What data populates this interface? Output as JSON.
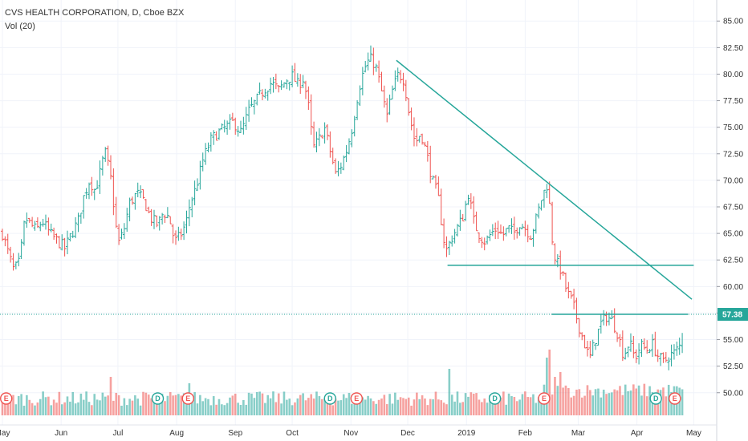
{
  "header": {
    "symbol_line": "CVS HEALTH CORPORATION, D, Cboe BZX",
    "volume_line": "Vol (20)"
  },
  "colors": {
    "up": "#26a69a",
    "down": "#ef5350",
    "trendline": "#26a69a",
    "price_tag": "#26a69a"
  },
  "chart_data": {
    "type": "candlestick",
    "title": "CVS HEALTH CORPORATION, D, Cboe BZX",
    "indicator": "Vol (20)",
    "y_axis": {
      "min": 49,
      "max": 86,
      "ticks": [
        "50.00",
        "52.50",
        "55.00",
        "57.50",
        "60.00",
        "62.50",
        "65.00",
        "67.50",
        "70.00",
        "72.50",
        "75.00",
        "77.50",
        "80.00",
        "82.50",
        "85.00"
      ]
    },
    "current_price": "57.38",
    "x_axis": {
      "labels": [
        {
          "text": "May",
          "day": 0
        },
        {
          "text": "Jun",
          "day": 31
        },
        {
          "text": "Jul",
          "day": 61
        },
        {
          "text": "Aug",
          "day": 92
        },
        {
          "text": "Sep",
          "day": 123
        },
        {
          "text": "Oct",
          "day": 153
        },
        {
          "text": "Nov",
          "day": 184
        },
        {
          "text": "Dec",
          "day": 214
        },
        {
          "text": "2019",
          "day": 245
        },
        {
          "text": "Feb",
          "day": 276
        },
        {
          "text": "Mar",
          "day": 304
        },
        {
          "text": "Apr",
          "day": 335
        },
        {
          "text": "May",
          "day": 365
        }
      ]
    },
    "price_path": [
      {
        "day": 0,
        "close": 65.0
      },
      {
        "day": 3,
        "close": 63.2
      },
      {
        "day": 6,
        "close": 61.5
      },
      {
        "day": 9,
        "close": 62.3
      },
      {
        "day": 12,
        "close": 66.5
      },
      {
        "day": 15,
        "close": 65.8
      },
      {
        "day": 18,
        "close": 65.3
      },
      {
        "day": 21,
        "close": 66.2
      },
      {
        "day": 25,
        "close": 65.0
      },
      {
        "day": 29,
        "close": 64.3
      },
      {
        "day": 33,
        "close": 63.6
      },
      {
        "day": 36,
        "close": 64.8
      },
      {
        "day": 40,
        "close": 66.2
      },
      {
        "day": 43,
        "close": 68.5
      },
      {
        "day": 46,
        "close": 70.0
      },
      {
        "day": 49,
        "close": 69.0
      },
      {
        "day": 52,
        "close": 71.0
      },
      {
        "day": 54,
        "close": 72.8
      },
      {
        "day": 57,
        "close": 70.5
      },
      {
        "day": 61,
        "close": 64.0
      },
      {
        "day": 64,
        "close": 65.2
      },
      {
        "day": 67,
        "close": 67.8
      },
      {
        "day": 71,
        "close": 68.8
      },
      {
        "day": 75,
        "close": 68.0
      },
      {
        "day": 78,
        "close": 66.5
      },
      {
        "day": 82,
        "close": 65.8
      },
      {
        "day": 85,
        "close": 67.0
      },
      {
        "day": 88,
        "close": 66.5
      },
      {
        "day": 91,
        "close": 64.2
      },
      {
        "day": 94,
        "close": 64.8
      },
      {
        "day": 97,
        "close": 66.0
      },
      {
        "day": 99,
        "close": 67.8
      },
      {
        "day": 102,
        "close": 69.2
      },
      {
        "day": 106,
        "close": 72.0
      },
      {
        "day": 110,
        "close": 73.8
      },
      {
        "day": 114,
        "close": 74.5
      },
      {
        "day": 118,
        "close": 75.0
      },
      {
        "day": 122,
        "close": 75.5
      },
      {
        "day": 126,
        "close": 74.5
      },
      {
        "day": 130,
        "close": 76.5
      },
      {
        "day": 134,
        "close": 77.5
      },
      {
        "day": 138,
        "close": 78.5
      },
      {
        "day": 142,
        "close": 79.2
      },
      {
        "day": 146,
        "close": 78.5
      },
      {
        "day": 150,
        "close": 79.5
      },
      {
        "day": 153,
        "close": 79.8
      },
      {
        "day": 156,
        "close": 79.0
      },
      {
        "day": 159,
        "close": 79.6
      },
      {
        "day": 162,
        "close": 76.5
      },
      {
        "day": 164,
        "close": 73.0
      },
      {
        "day": 167,
        "close": 73.8
      },
      {
        "day": 170,
        "close": 75.0
      },
      {
        "day": 173,
        "close": 72.8
      },
      {
        "day": 176,
        "close": 70.5
      },
      {
        "day": 179,
        "close": 71.5
      },
      {
        "day": 182,
        "close": 73.0
      },
      {
        "day": 185,
        "close": 75.2
      },
      {
        "day": 188,
        "close": 78.5
      },
      {
        "day": 191,
        "close": 80.5
      },
      {
        "day": 194,
        "close": 81.5
      },
      {
        "day": 197,
        "close": 80.8
      },
      {
        "day": 200,
        "close": 78.5
      },
      {
        "day": 203,
        "close": 76.0
      },
      {
        "day": 206,
        "close": 78.5
      },
      {
        "day": 209,
        "close": 80.0
      },
      {
        "day": 212,
        "close": 79.5
      },
      {
        "day": 215,
        "close": 76.0
      },
      {
        "day": 218,
        "close": 73.5
      },
      {
        "day": 221,
        "close": 74.5
      },
      {
        "day": 224,
        "close": 72.5
      },
      {
        "day": 227,
        "close": 70.0
      },
      {
        "day": 230,
        "close": 68.5
      },
      {
        "day": 232,
        "close": 65.8
      },
      {
        "day": 234,
        "close": 63.2
      },
      {
        "day": 237,
        "close": 64.5
      },
      {
        "day": 240,
        "close": 65.5
      },
      {
        "day": 243,
        "close": 66.5
      },
      {
        "day": 246,
        "close": 68.8
      },
      {
        "day": 249,
        "close": 66.0
      },
      {
        "day": 252,
        "close": 64.8
      },
      {
        "day": 255,
        "close": 64.2
      },
      {
        "day": 258,
        "close": 65.0
      },
      {
        "day": 261,
        "close": 65.5
      },
      {
        "day": 264,
        "close": 64.8
      },
      {
        "day": 267,
        "close": 65.5
      },
      {
        "day": 270,
        "close": 65.0
      },
      {
        "day": 273,
        "close": 66.0
      },
      {
        "day": 276,
        "close": 65.5
      },
      {
        "day": 279,
        "close": 64.8
      },
      {
        "day": 282,
        "close": 66.5
      },
      {
        "day": 285,
        "close": 68.5
      },
      {
        "day": 288,
        "close": 69.8
      },
      {
        "day": 290,
        "close": 64.8
      },
      {
        "day": 292,
        "close": 62.5
      },
      {
        "day": 295,
        "close": 61.5
      },
      {
        "day": 298,
        "close": 59.5
      },
      {
        "day": 301,
        "close": 58.5
      },
      {
        "day": 304,
        "close": 56.5
      },
      {
        "day": 307,
        "close": 54.8
      },
      {
        "day": 310,
        "close": 53.2
      },
      {
        "day": 313,
        "close": 55.0
      },
      {
        "day": 316,
        "close": 56.5
      },
      {
        "day": 319,
        "close": 57.2
      },
      {
        "day": 322,
        "close": 56.8
      },
      {
        "day": 325,
        "close": 55.5
      },
      {
        "day": 328,
        "close": 53.5
      },
      {
        "day": 331,
        "close": 54.8
      },
      {
        "day": 334,
        "close": 53.2
      },
      {
        "day": 337,
        "close": 54.5
      },
      {
        "day": 340,
        "close": 54.0
      },
      {
        "day": 343,
        "close": 54.6
      },
      {
        "day": 346,
        "close": 53.5
      },
      {
        "day": 349,
        "close": 52.8
      },
      {
        "day": 352,
        "close": 53.5
      },
      {
        "day": 355,
        "close": 53.8
      },
      {
        "day": 358,
        "close": 54.5
      },
      {
        "day": 360,
        "close": 57.38
      }
    ],
    "volume_spikes": [
      {
        "day": 57,
        "volume": 48
      },
      {
        "day": 99,
        "volume": 40
      },
      {
        "day": 236,
        "volume": 58
      },
      {
        "day": 288,
        "volume": 72
      },
      {
        "day": 289,
        "volume": 82
      },
      {
        "day": 292,
        "volume": 48
      },
      {
        "day": 295,
        "volume": 54
      }
    ],
    "trendlines": [
      {
        "kind": "descending",
        "from": {
          "day": 208,
          "price": 81.3
        },
        "to": {
          "day": 364,
          "price": 58.8
        }
      },
      {
        "kind": "horizontal",
        "from": {
          "day": 235,
          "price": 62.0
        },
        "to": {
          "day": 365,
          "price": 62.0
        }
      },
      {
        "kind": "horizontal",
        "from": {
          "day": 290,
          "price": 57.38
        },
        "to": {
          "day": 362,
          "price": 57.38
        }
      }
    ],
    "events": [
      {
        "label": "E",
        "day": 2
      },
      {
        "label": "D",
        "day": 82
      },
      {
        "label": "E",
        "day": 98
      },
      {
        "label": "D",
        "day": 173
      },
      {
        "label": "E",
        "day": 187
      },
      {
        "label": "D",
        "day": 260
      },
      {
        "label": "E",
        "day": 286
      },
      {
        "label": "D",
        "day": 345
      },
      {
        "label": "E",
        "day": 355
      }
    ]
  }
}
